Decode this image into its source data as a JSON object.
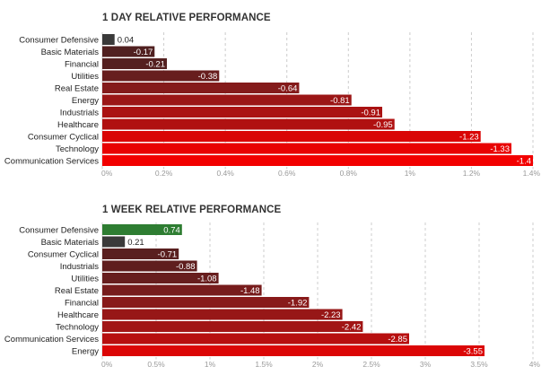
{
  "chart_data": [
    {
      "type": "bar",
      "orientation": "horizontal",
      "title": "1 DAY RELATIVE PERFORMANCE",
      "categories": [
        "Consumer Defensive",
        "Basic Materials",
        "Financial",
        "Utilities",
        "Real Estate",
        "Energy",
        "Industrials",
        "Healthcare",
        "Consumer Cyclical",
        "Technology",
        "Communication Services"
      ],
      "values": [
        0.04,
        -0.17,
        -0.21,
        -0.38,
        -0.64,
        -0.81,
        -0.91,
        -0.95,
        -1.23,
        -1.33,
        -1.4
      ],
      "value_labels": [
        "0.04",
        "-0.17",
        "-0.21",
        "-0.38",
        "-0.64",
        "-0.81",
        "-0.91",
        "-0.95",
        "-1.23",
        "-1.33",
        "-1.4"
      ],
      "xlim": [
        0,
        1.4
      ],
      "xticks": [
        0,
        0.2,
        0.4,
        0.6,
        0.8,
        1,
        1.2,
        1.4
      ],
      "xtick_labels": [
        "0%",
        "0.2%",
        "0.4%",
        "0.6%",
        "0.8%",
        "1%",
        "1.2%",
        "1.4%"
      ],
      "grid": true,
      "colors": {
        "positive_dark": "#3a3a3a",
        "negative_dark": "#3d2222",
        "negative_mid": "#8b1a1a",
        "negative_bright": "#f20000",
        "positive_green": "#2e7d32"
      }
    },
    {
      "type": "bar",
      "orientation": "horizontal",
      "title": "1 WEEK RELATIVE PERFORMANCE",
      "categories": [
        "Consumer Defensive",
        "Basic Materials",
        "Consumer Cyclical",
        "Industrials",
        "Utilities",
        "Real Estate",
        "Financial",
        "Healthcare",
        "Technology",
        "Communication Services",
        "Energy"
      ],
      "values": [
        0.74,
        0.21,
        -0.71,
        -0.88,
        -1.08,
        -1.48,
        -1.92,
        -2.23,
        -2.42,
        -2.85,
        -3.55
      ],
      "value_labels": [
        "0.74",
        "0.21",
        "-0.71",
        "-0.88",
        "-1.08",
        "-1.48",
        "-1.92",
        "-2.23",
        "-2.42",
        "-2.85",
        "-3.55"
      ],
      "xlim": [
        0,
        4
      ],
      "xticks": [
        0,
        0.5,
        1,
        1.5,
        2,
        2.5,
        3,
        3.5,
        4
      ],
      "xtick_labels": [
        "0%",
        "0.5%",
        "1%",
        "1.5%",
        "2%",
        "2.5%",
        "3%",
        "3.5%",
        "4%"
      ],
      "grid": true,
      "colors": {
        "positive_dark": "#3a3a3a",
        "negative_dark": "#3d2222",
        "negative_mid": "#8b1a1a",
        "negative_bright": "#f20000",
        "positive_green": "#2e7d32"
      }
    }
  ]
}
